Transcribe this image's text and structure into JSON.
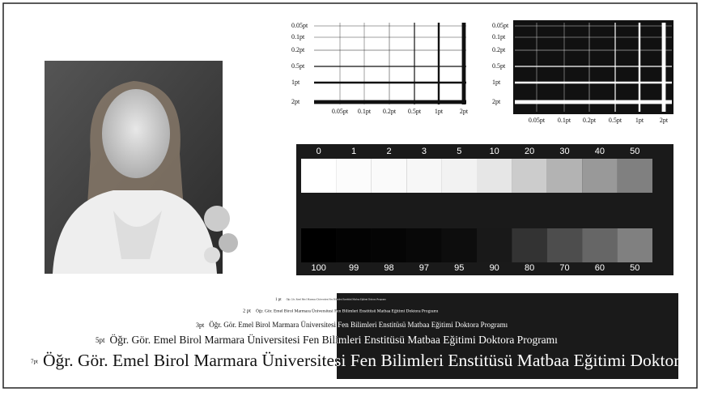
{
  "line_weights": {
    "weights": [
      {
        "value": 0.05,
        "label": "0.05pt"
      },
      {
        "value": 0.1,
        "label": "0.1pt"
      },
      {
        "value": 0.2,
        "label": "0.2pt"
      },
      {
        "value": 0.5,
        "label": "0.5pt"
      },
      {
        "value": 1,
        "label": "1pt"
      },
      {
        "value": 2,
        "label": "2pt"
      }
    ]
  },
  "gray_scale": {
    "top": [
      0,
      1,
      2,
      3,
      5,
      10,
      20,
      30,
      40,
      50
    ],
    "bottom": [
      100,
      99,
      98,
      97,
      95,
      90,
      80,
      70,
      60,
      50
    ]
  },
  "text_sizes": {
    "sample": "Öğr. Gör. Emel Birol Marmara Üniversitesi Fen Bilimleri Enstitüsü Matbaa Eğitimi Doktora Programı",
    "sizes": [
      "1 pt",
      "2 pt",
      "3pt",
      "5pt",
      "7pt"
    ]
  }
}
